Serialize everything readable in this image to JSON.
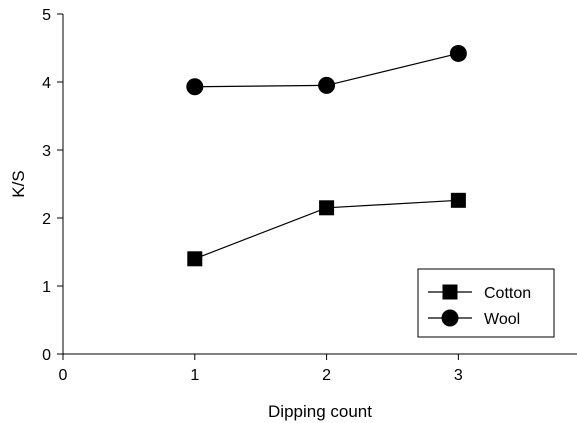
{
  "chart_data": {
    "type": "line",
    "title": "",
    "xlabel": "Dipping count",
    "ylabel": "K/S",
    "xlim": [
      0,
      3.9
    ],
    "ylim": [
      0,
      5
    ],
    "x_ticks": [
      0,
      1,
      2,
      3
    ],
    "y_ticks": [
      0,
      1,
      2,
      3,
      4,
      5
    ],
    "x_tick_labels": [
      "0",
      "1",
      "2",
      "3"
    ],
    "y_tick_labels": [
      "0",
      "1",
      "2",
      "3",
      "4",
      "5"
    ],
    "grid": false,
    "legend_position": "bottom-right",
    "series": [
      {
        "name": "Cotton",
        "marker": "square",
        "color": "#000000",
        "x": [
          1,
          2,
          3
        ],
        "y": [
          1.4,
          2.15,
          2.26
        ]
      },
      {
        "name": "Wool",
        "marker": "circle",
        "color": "#000000",
        "x": [
          1,
          2,
          3
        ],
        "y": [
          3.93,
          3.95,
          4.42
        ]
      }
    ]
  }
}
